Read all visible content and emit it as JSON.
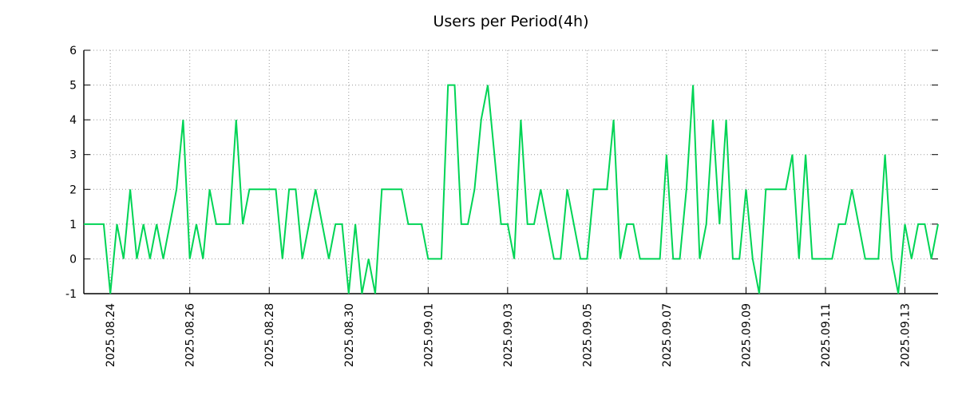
{
  "chart_data": {
    "type": "line",
    "title": "Users per Period(4h)",
    "interval": "4h",
    "legend": "none",
    "grid": true,
    "grid_style": "dotted",
    "line_color": "#00d455",
    "ylim": [
      -1,
      6
    ],
    "y_ticks": [
      -1,
      0,
      1,
      2,
      3,
      4,
      5,
      6
    ],
    "x_tick_labels": [
      "2025.08.24",
      "2025.08.26",
      "2025.08.28",
      "2025.08.30",
      "2025.09.01",
      "2025.09.03",
      "2025.09.05",
      "2025.09.07",
      "2025.09.09",
      "2025.09.11",
      "2025.09.13"
    ],
    "x_tick_indices": [
      4,
      16,
      28,
      40,
      52,
      64,
      76,
      88,
      100,
      112,
      124
    ],
    "series": [
      {
        "name": "users",
        "values": [
          1,
          1,
          1,
          1,
          -1,
          1,
          0,
          2,
          0,
          1,
          0,
          1,
          0,
          1,
          2,
          4,
          0,
          1,
          0,
          2,
          1,
          1,
          1,
          4,
          1,
          2,
          2,
          2,
          2,
          2,
          0,
          2,
          2,
          0,
          1,
          2,
          1,
          0,
          1,
          1,
          -1,
          1,
          -1,
          0,
          -1,
          2,
          2,
          2,
          2,
          1,
          1,
          1,
          0,
          0,
          0,
          5,
          5,
          1,
          1,
          2,
          4,
          5,
          3,
          1,
          1,
          0,
          4,
          1,
          1,
          2,
          1,
          0,
          0,
          2,
          1,
          0,
          0,
          2,
          2,
          2,
          4,
          0,
          1,
          1,
          0,
          0,
          0,
          0,
          3,
          0,
          0,
          2,
          5,
          0,
          1,
          4,
          1,
          4,
          0,
          0,
          2,
          0,
          -1,
          2,
          2,
          2,
          2,
          3,
          0,
          3,
          0,
          0,
          0,
          0,
          1,
          1,
          2,
          1,
          0,
          0,
          0,
          3,
          0,
          -1,
          1,
          0,
          1,
          1,
          0,
          1
        ]
      }
    ]
  }
}
